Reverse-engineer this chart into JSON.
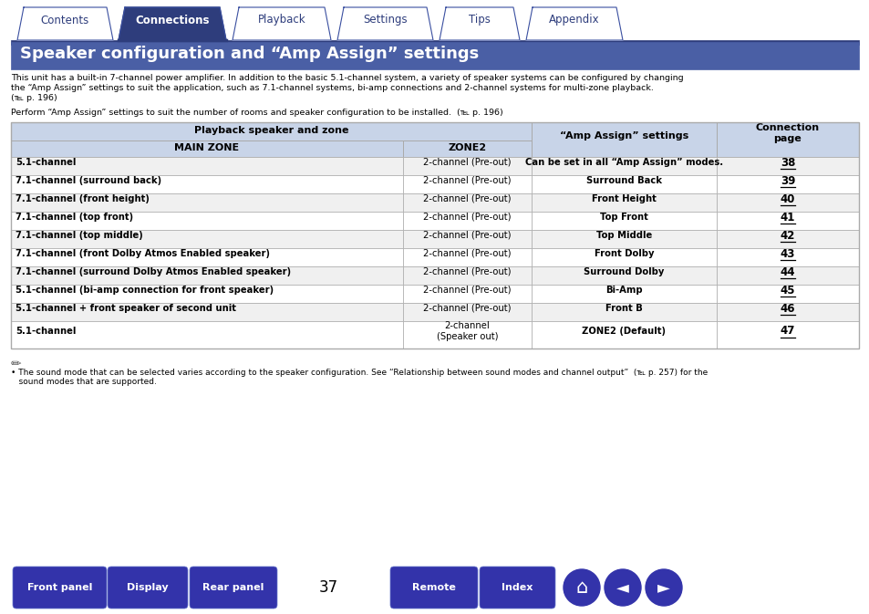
{
  "title": "Speaker configuration and “Amp Assign” settings",
  "title_bg": "#4a5fa5",
  "title_text_color": "#ffffff",
  "page_number": "37",
  "tab_labels": [
    "Contents",
    "Connections",
    "Playback",
    "Settings",
    "Tips",
    "Appendix"
  ],
  "active_tab": 1,
  "tab_bg_active": "#2e3d7c",
  "tab_bg_inactive": "#ffffff",
  "tab_border": "#3a4fa0",
  "nav_buttons": [
    "Front panel",
    "Display",
    "Rear panel",
    "Remote",
    "Index"
  ],
  "nav_button_color": "#3333aa",
  "body_bg": "#ffffff",
  "intro_line1": "This unit has a built-in 7-channel power amplifier. In addition to the basic 5.1-channel system, a variety of speaker systems can be configured by changing",
  "intro_line2": "the “Amp Assign” settings to suit the application, such as 7.1-channel systems, bi-amp connections and 2-channel systems for multi-zone playback.",
  "intro_line3": "(℡ p. 196)",
  "perform_text": "Perform “Amp Assign” settings to suit the number of rooms and speaker configuration to be installed.  (℡ p. 196)",
  "table_header_bg": "#c8d4e8",
  "table_row_bg_odd": "#f0f0f0",
  "table_row_bg_even": "#ffffff",
  "table_border": "#aaaaaa",
  "rows": [
    [
      "5.1-channel",
      "2-channel (Pre-out)",
      "Can be set in all “Amp Assign” modes.",
      "38"
    ],
    [
      "7.1-channel (surround back)",
      "2-channel (Pre-out)",
      "Surround Back",
      "39"
    ],
    [
      "7.1-channel (front height)",
      "2-channel (Pre-out)",
      "Front Height",
      "40"
    ],
    [
      "7.1-channel (top front)",
      "2-channel (Pre-out)",
      "Top Front",
      "41"
    ],
    [
      "7.1-channel (top middle)",
      "2-channel (Pre-out)",
      "Top Middle",
      "42"
    ],
    [
      "7.1-channel (front Dolby Atmos Enabled speaker)",
      "2-channel (Pre-out)",
      "Front Dolby",
      "43"
    ],
    [
      "7.1-channel (surround Dolby Atmos Enabled speaker)",
      "2-channel (Pre-out)",
      "Surround Dolby",
      "44"
    ],
    [
      "5.1-channel (bi-amp connection for front speaker)",
      "2-channel (Pre-out)",
      "Bi-Amp",
      "45"
    ],
    [
      "5.1-channel + front speaker of second unit",
      "2-channel (Pre-out)",
      "Front B",
      "46"
    ],
    [
      "5.1-channel",
      "2-channel\n(Speaker out)",
      "ZONE2 (Default)",
      "47"
    ]
  ],
  "footnote_line1": "• The sound mode that can be selected varies according to the speaker configuration. See “Relationship between sound modes and channel output”  (℡ p. 257) for the",
  "footnote_line2": "   sound modes that are supported.",
  "blue_line_color": "#2e3d7c"
}
